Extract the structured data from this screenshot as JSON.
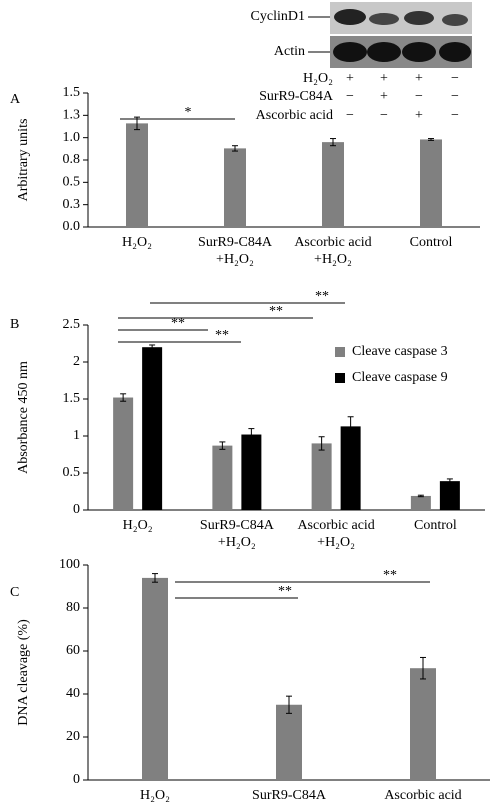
{
  "blot": {
    "proteins": [
      "CyclinD1",
      "Actin"
    ],
    "treatments": [
      {
        "name": "H₂O₂",
        "signs": [
          "+",
          "+",
          "+",
          "−"
        ]
      },
      {
        "name": "SurR9-C84A",
        "signs": [
          "−",
          "+",
          "−",
          "−"
        ]
      },
      {
        "name": "Ascorbic acid",
        "signs": [
          "−",
          "−",
          "+",
          "−"
        ]
      }
    ]
  },
  "chart_data": [
    {
      "type": "bar",
      "label": "A",
      "y_label": "Arbitrary units",
      "categories": [
        [
          "H₂O₂"
        ],
        [
          "SurR9-C84A",
          "+H₂O₂"
        ],
        [
          "Ascorbic acid",
          "+H₂O₂"
        ],
        [
          "Control"
        ]
      ],
      "values": [
        1.16,
        0.88,
        0.95,
        0.98
      ],
      "errors": [
        0.07,
        0.03,
        0.04,
        0.01
      ],
      "color": "#808080",
      "ylim": [
        0,
        1.5
      ],
      "yticks": [
        {
          "value": 0,
          "label": "0.0"
        },
        {
          "value": 0.25,
          "label": "0.3"
        },
        0.5,
        {
          "value": 0.75,
          "label": "0.8"
        },
        {
          "value": 1,
          "label": "1.0"
        },
        {
          "value": 1.25,
          "label": "1.3"
        },
        1.5
      ],
      "annotations": [
        "*"
      ]
    },
    {
      "type": "bar",
      "label": "B",
      "y_label": "Absorbance 450 nm",
      "categories": [
        [
          "H₂O₂"
        ],
        [
          "SurR9-C84A",
          "+H₂O₂"
        ],
        [
          "Ascorbic acid",
          "+H₂O₂"
        ],
        [
          "Control"
        ]
      ],
      "series": [
        {
          "name": "Cleave caspase 3",
          "color": "#808080",
          "values": [
            1.52,
            0.87,
            0.9,
            0.19
          ],
          "errors": [
            0.05,
            0.05,
            0.09,
            0.01
          ]
        },
        {
          "name": "Cleave caspase 9",
          "color": "#000000",
          "values": [
            2.2,
            1.02,
            1.13,
            0.39
          ],
          "errors": [
            0.03,
            0.08,
            0.13,
            0.03
          ]
        }
      ],
      "ylim": [
        0,
        2.5
      ],
      "yticks": [
        0,
        0.5,
        1,
        1.5,
        2,
        2.5
      ],
      "legend": "top-right",
      "annotations": [
        "**",
        "**",
        "**",
        "**"
      ]
    },
    {
      "type": "bar",
      "label": "C",
      "y_label": "DNA cleavage (%)",
      "categories": [
        [
          "H₂O₂"
        ],
        [
          "SurR9-C84A"
        ],
        [
          "Ascorbic acid"
        ]
      ],
      "values": [
        94,
        35,
        52
      ],
      "errors": [
        2,
        4,
        5
      ],
      "color": "#808080",
      "ylim": [
        0,
        100
      ],
      "yticks": [
        0,
        20,
        40,
        60,
        80,
        100
      ],
      "annotations": [
        "**",
        "**"
      ]
    }
  ]
}
